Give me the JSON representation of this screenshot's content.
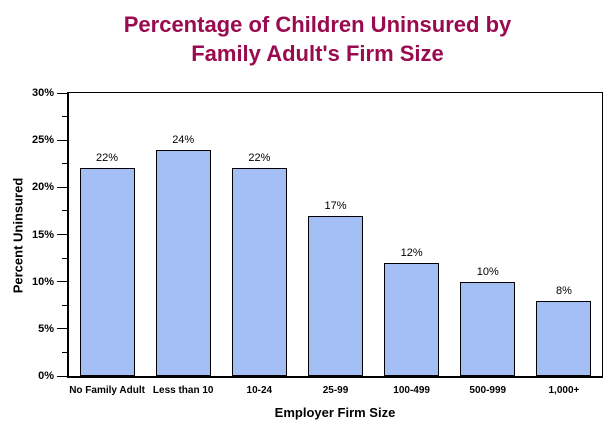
{
  "page": {
    "background": "#FFFFFF"
  },
  "title": {
    "line1": "Percentage of Children Uninsured by",
    "line2": "Family Adult's Firm Size",
    "color": "#990A4E"
  },
  "chart_data": {
    "type": "bar",
    "title": "Percentage of Children Uninsured by Family Adult's Firm Size",
    "categories": [
      "No Family Adult",
      "Less than 10",
      "10-24",
      "25-99",
      "100-499",
      "500-999",
      "1,000+"
    ],
    "values": [
      22,
      24,
      22,
      17,
      12,
      10,
      8
    ],
    "data_labels": [
      "22%",
      "24%",
      "22%",
      "17%",
      "12%",
      "10%",
      "8%"
    ],
    "xlabel": "Employer Firm Size",
    "ylabel": "Percent Uninsured",
    "ylim": [
      0,
      30
    ],
    "y_major_step": 5,
    "y_minor_step": 2.5,
    "y_tick_labels": [
      "0%",
      "5%",
      "10%",
      "15%",
      "20%",
      "25%",
      "30%"
    ],
    "grid": false,
    "legend": false,
    "bar_fill": "#A2BEF5",
    "bar_border": "#000000",
    "axis_color": "#000000"
  }
}
